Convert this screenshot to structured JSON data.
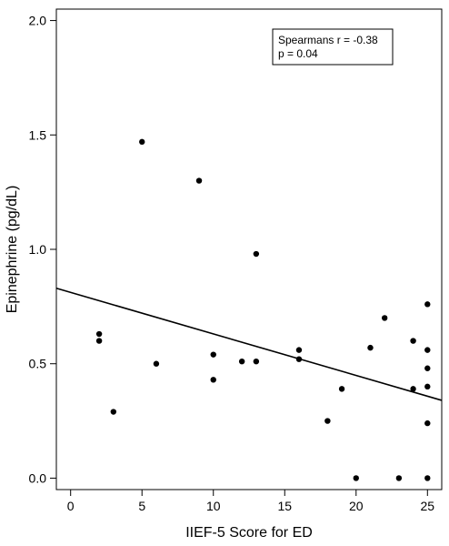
{
  "chart_data": {
    "type": "scatter",
    "title": "",
    "xlabel": "IIEF-5 Score for ED",
    "ylabel": "Epinephrine (pg/dL)",
    "xlim": [
      -1,
      26
    ],
    "ylim": [
      -0.05,
      2.05
    ],
    "x_ticks": [
      0,
      5,
      10,
      15,
      20,
      25
    ],
    "y_ticks": [
      0.0,
      0.5,
      1.0,
      1.5,
      2.0
    ],
    "x_tick_labels": [
      "0",
      "5",
      "10",
      "15",
      "20",
      "25"
    ],
    "y_tick_labels": [
      "0.0",
      "0.5",
      "1.0",
      "1.5",
      "2.0"
    ],
    "grid": false,
    "series": [
      {
        "type": "scatter",
        "color": "#000000",
        "points": [
          {
            "x": 2,
            "y": 0.63
          },
          {
            "x": 2,
            "y": 0.6
          },
          {
            "x": 3,
            "y": 0.29
          },
          {
            "x": 5,
            "y": 1.47
          },
          {
            "x": 6,
            "y": 0.5
          },
          {
            "x": 9,
            "y": 1.3
          },
          {
            "x": 10,
            "y": 0.54
          },
          {
            "x": 10,
            "y": 0.43
          },
          {
            "x": 12,
            "y": 0.51
          },
          {
            "x": 13,
            "y": 0.98
          },
          {
            "x": 13,
            "y": 0.51
          },
          {
            "x": 16,
            "y": 0.56
          },
          {
            "x": 16,
            "y": 0.52
          },
          {
            "x": 18,
            "y": 0.25
          },
          {
            "x": 19,
            "y": 0.39
          },
          {
            "x": 20,
            "y": 0.0
          },
          {
            "x": 21,
            "y": 0.57
          },
          {
            "x": 22,
            "y": 0.7
          },
          {
            "x": 23,
            "y": 0.0
          },
          {
            "x": 24,
            "y": 0.6
          },
          {
            "x": 24,
            "y": 0.39
          },
          {
            "x": 25,
            "y": 0.76
          },
          {
            "x": 25,
            "y": 0.56
          },
          {
            "x": 25,
            "y": 0.48
          },
          {
            "x": 25,
            "y": 0.4
          },
          {
            "x": 25,
            "y": 0.24
          },
          {
            "x": 25,
            "y": 0.0
          }
        ]
      }
    ],
    "regression_line": {
      "x": [
        -1,
        26
      ],
      "y": [
        0.83,
        0.34
      ],
      "color": "#000000"
    },
    "annotation": {
      "lines": [
        "Spearmans r = -0.38",
        "p = 0.04"
      ],
      "placement": "top-right"
    }
  }
}
